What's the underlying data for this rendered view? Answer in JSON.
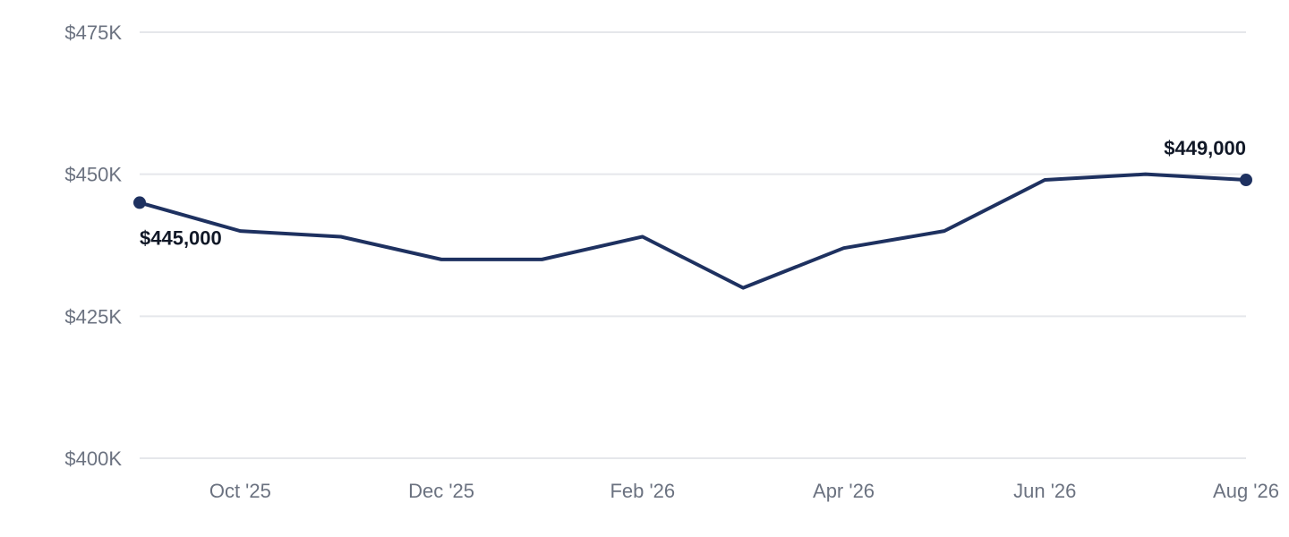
{
  "chart_data": {
    "type": "line",
    "x": [
      "Sep '25",
      "Oct '25",
      "Nov '25",
      "Dec '25",
      "Jan '26",
      "Feb '26",
      "Mar '26",
      "Apr '26",
      "May '26",
      "Jun '26",
      "Jul '26",
      "Aug '26"
    ],
    "series": [
      {
        "values": [
          445000,
          440000,
          439000,
          435000,
          435000,
          439000,
          430000,
          437000,
          440000,
          449000,
          450000,
          449000
        ]
      }
    ],
    "x_tick_labels": [
      "Oct '25",
      "Dec '25",
      "Feb '26",
      "Apr '26",
      "Jun '26",
      "Aug '26"
    ],
    "y_ticks": [
      400000,
      425000,
      450000,
      475000
    ],
    "y_tick_labels": [
      "$400K",
      "$425K",
      "$450K",
      "$475K"
    ],
    "ylim": [
      400000,
      475000
    ],
    "grid": true,
    "data_labels": [
      {
        "x": "Sep '25",
        "text": "$445,000"
      },
      {
        "x": "Aug '26",
        "text": "$449,000"
      }
    ],
    "colors": {
      "line": "#1e3160",
      "grid": "#e5e7eb",
      "tick_text": "#6b7280",
      "label_text": "#111827"
    },
    "title": "",
    "xlabel": "",
    "ylabel": ""
  }
}
